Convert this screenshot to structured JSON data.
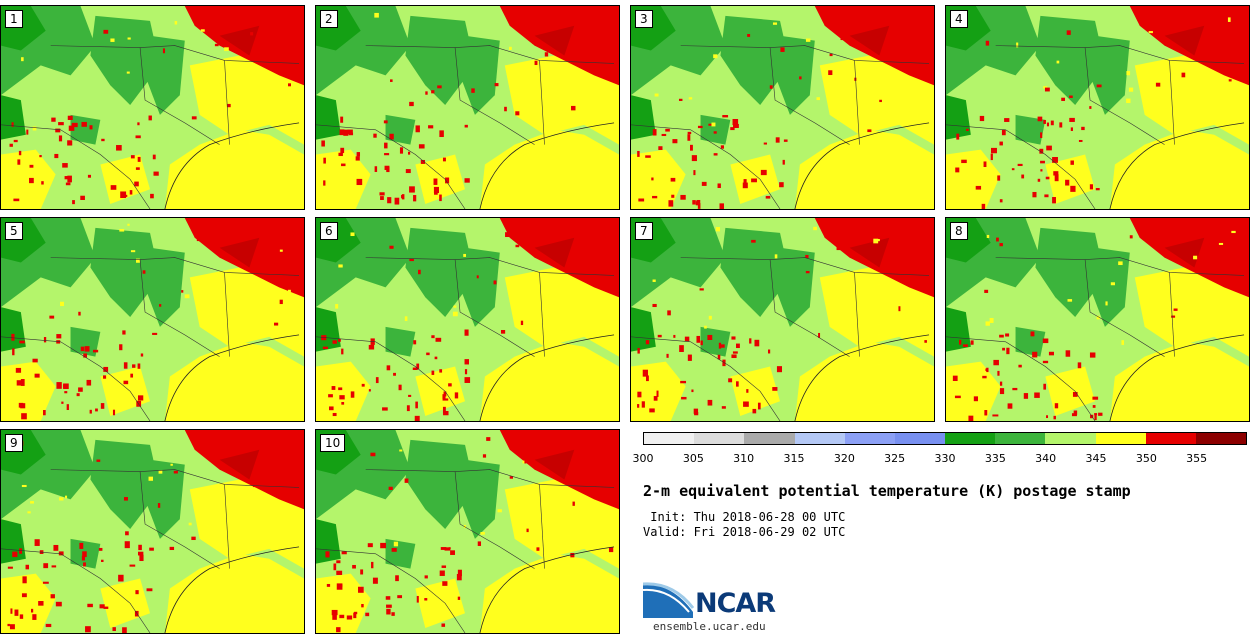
{
  "panels": [
    {
      "label": "1"
    },
    {
      "label": "2"
    },
    {
      "label": "3"
    },
    {
      "label": "4"
    },
    {
      "label": "5"
    },
    {
      "label": "6"
    },
    {
      "label": "7"
    },
    {
      "label": "8"
    },
    {
      "label": "9"
    },
    {
      "label": "10"
    }
  ],
  "colorbar": {
    "colors": [
      "#f0f0f0",
      "#dcdcdc",
      "#aaaaaa",
      "#b4c8f5",
      "#8ca0f5",
      "#7890f0",
      "#14a014",
      "#3cb43c",
      "#b4f56b",
      "#ffff1e",
      "#e60000",
      "#8c0000"
    ],
    "ticks": [
      "300",
      "305",
      "310",
      "315",
      "320",
      "325",
      "330",
      "335",
      "340",
      "345",
      "350",
      "355"
    ]
  },
  "title": "2-m equivalent potential temperature (K) postage stamp",
  "init": " Init: Thu 2018-06-28 00 UTC",
  "valid": "Valid: Fri 2018-06-29 02 UTC",
  "logo": {
    "text": "NCAR",
    "url": "ensemble.ucar.edu"
  },
  "map_colors": {
    "light_green": "#b4f56b",
    "green": "#3cb43c",
    "dark_green": "#14a014",
    "yellow": "#ffff1e",
    "red": "#e60000",
    "dark_red": "#8c0000"
  }
}
